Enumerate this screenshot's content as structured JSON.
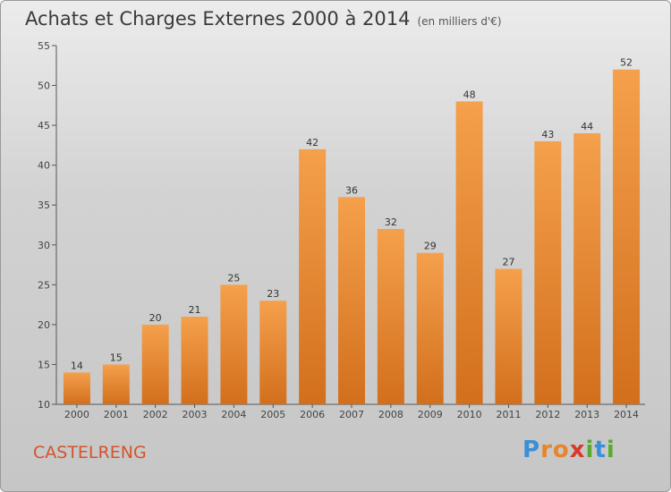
{
  "title": "Achats et Charges Externes 2000 à 2014",
  "subtitle": "(en milliers d'€)",
  "commune": "CASTELRENG",
  "logo": {
    "text": "Proxiti",
    "letters": [
      {
        "ch": "P",
        "color": "#3a8fd6"
      },
      {
        "ch": "r",
        "color": "#e8842a"
      },
      {
        "ch": "o",
        "color": "#e8842a"
      },
      {
        "ch": "x",
        "color": "#d83a2a"
      },
      {
        "ch": "i",
        "color": "#5aaa32"
      },
      {
        "ch": "t",
        "color": "#3a8fd6"
      },
      {
        "ch": "i",
        "color": "#5aaa32"
      }
    ]
  },
  "colors": {
    "bar_top": "#f5a04c",
    "bar_bottom": "#d26f1c",
    "commune": "#d4542c"
  },
  "chart_data": {
    "type": "bar",
    "title": "Achats et Charges Externes 2000 à 2014",
    "subtitle": "(en milliers d'€)",
    "xlabel": "",
    "ylabel": "",
    "categories": [
      "2000",
      "2001",
      "2002",
      "2003",
      "2004",
      "2005",
      "2006",
      "2007",
      "2008",
      "2009",
      "2010",
      "2011",
      "2012",
      "2013",
      "2014"
    ],
    "values": [
      14,
      15,
      20,
      21,
      25,
      23,
      42,
      36,
      32,
      29,
      48,
      27,
      43,
      44,
      52
    ],
    "ylim": [
      10,
      55
    ],
    "yticks": [
      10,
      15,
      20,
      25,
      30,
      35,
      40,
      45,
      50,
      55
    ],
    "grid": false,
    "legend": "none"
  }
}
